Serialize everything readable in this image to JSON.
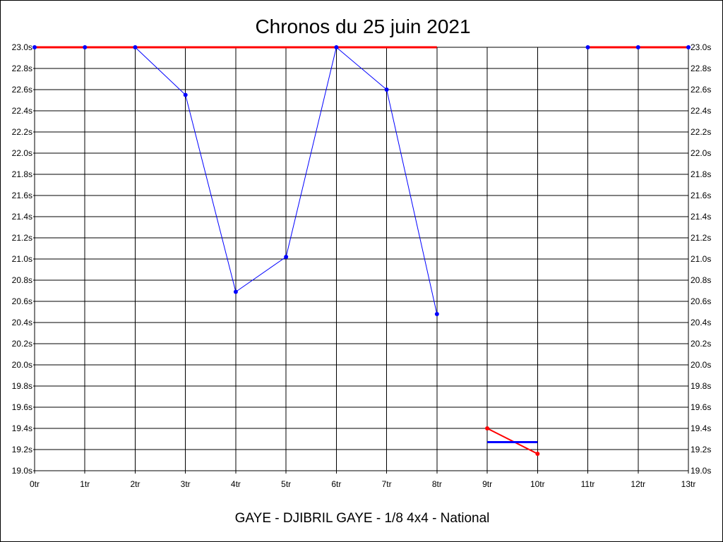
{
  "chart_data": {
    "type": "line",
    "title": "Chronos du 25 juin 2021",
    "subtitle": "GAYE - DJIBRIL GAYE - 1/8 4x4 - National",
    "x_ticks": [
      "0tr",
      "1tr",
      "2tr",
      "3tr",
      "4tr",
      "5tr",
      "6tr",
      "7tr",
      "8tr",
      "9tr",
      "10tr",
      "11tr",
      "12tr",
      "13tr"
    ],
    "y_ticks": [
      "19.0s",
      "19.2s",
      "19.4s",
      "19.6s",
      "19.8s",
      "20.0s",
      "20.2s",
      "20.4s",
      "20.6s",
      "20.8s",
      "21.0s",
      "21.2s",
      "21.4s",
      "21.6s",
      "21.8s",
      "22.0s",
      "22.2s",
      "22.4s",
      "22.6s",
      "22.8s",
      "23.0s"
    ],
    "xlim": [
      0,
      13
    ],
    "ylim": [
      19.0,
      23.0
    ],
    "grid": true,
    "y_axis_both_sides": true,
    "series": [
      {
        "color": "#0000ff",
        "style": "line-with-points",
        "points": [
          [
            0,
            23.0
          ],
          [
            1,
            23.0
          ],
          [
            2,
            23.0
          ],
          [
            3,
            22.55
          ],
          [
            4,
            20.69
          ],
          [
            5,
            21.02
          ],
          [
            6,
            23.0
          ],
          [
            7,
            22.6
          ],
          [
            8,
            20.48
          ]
        ]
      },
      {
        "color": "#0000ff",
        "style": "line-with-points",
        "points": [
          [
            11,
            23.0
          ],
          [
            12,
            23.0
          ],
          [
            13,
            23.0
          ]
        ]
      },
      {
        "color": "#ff0000",
        "style": "thick-line",
        "points": [
          [
            0,
            23.0
          ],
          [
            8,
            23.0
          ]
        ]
      },
      {
        "color": "#ff0000",
        "style": "thick-line",
        "points": [
          [
            11,
            23.0
          ],
          [
            13,
            23.0
          ]
        ]
      },
      {
        "color": "#ff0000",
        "style": "line-with-points",
        "points": [
          [
            9,
            19.4
          ],
          [
            10,
            19.16
          ]
        ]
      },
      {
        "color": "#0000ff",
        "style": "thick-line",
        "points": [
          [
            9,
            19.27
          ],
          [
            10,
            19.27
          ]
        ]
      }
    ]
  }
}
